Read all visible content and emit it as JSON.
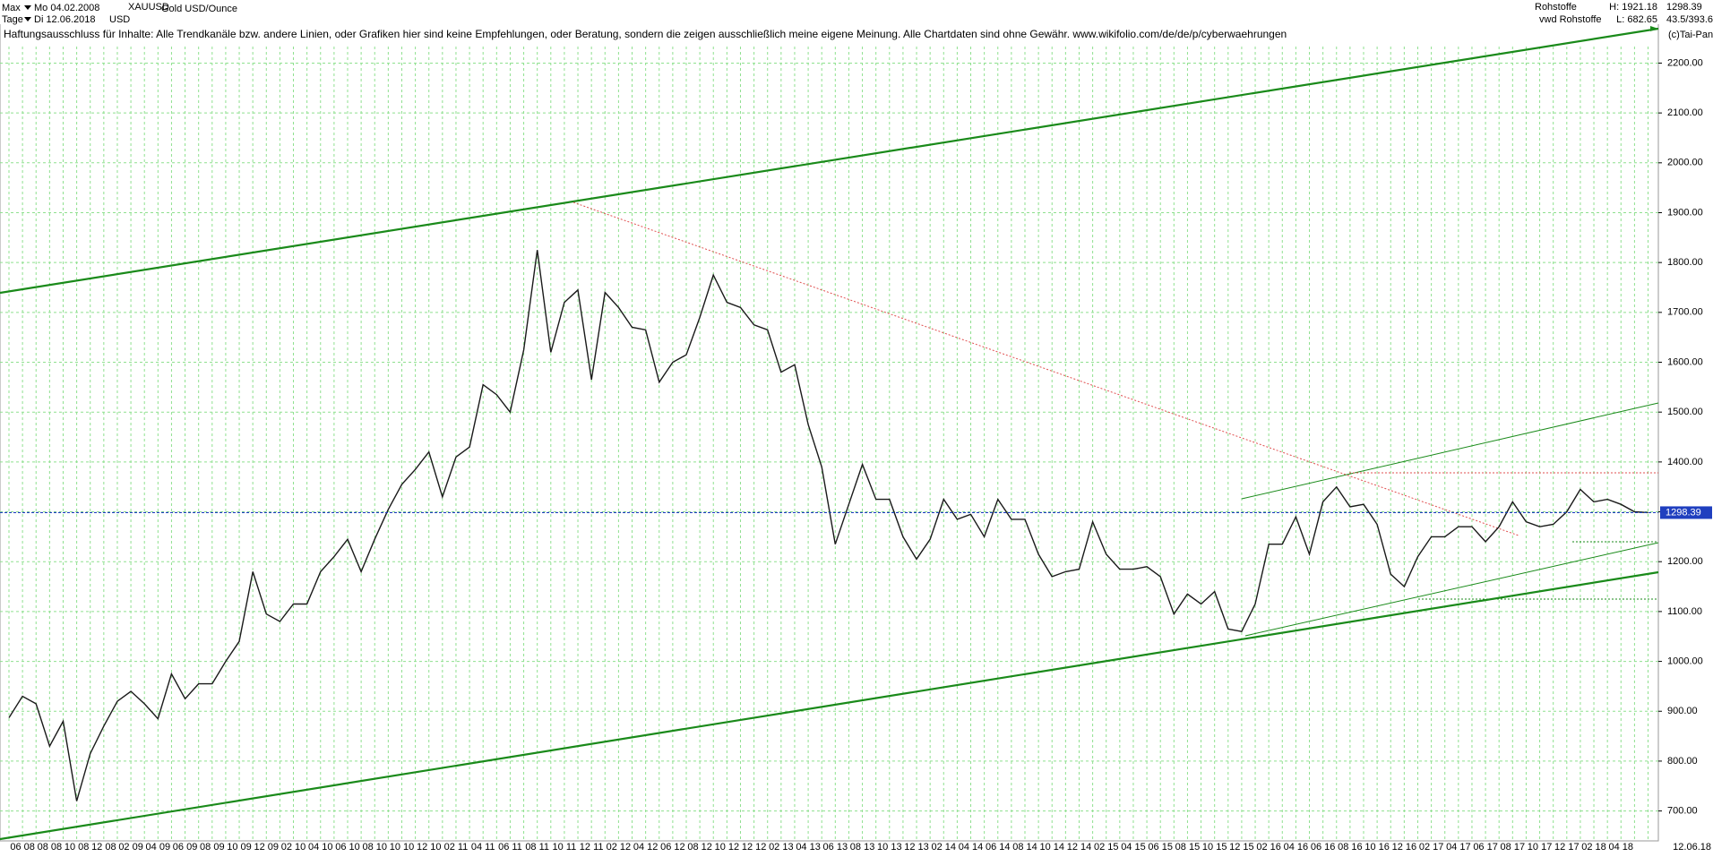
{
  "header": {
    "range": "Max",
    "date_from": "Mo 04.02.2008",
    "symbol": "XAUUSD",
    "name": "Gold USD/Ounce",
    "period": "Tage",
    "date_to": "Di 12.06.2018",
    "currency": "USD",
    "source": "Rohstoffe",
    "high": "H: 1921.18",
    "last": "1298.39",
    "source2": "vwd Rohstoffe",
    "low": "L: 682.65",
    "ratio": "43.5/393.6",
    "copyright": "(c)Tai-Pan",
    "disclaimer": "Haftungsausschluss für Inhalte: Alle Trendkanäle bzw. andere Linien, oder Grafiken hier sind keine Empfehlungen, oder Beratung, sondern die zeigen ausschließlich meine eigene Meinung. Alle Chartdaten sind ohne Gewähr.  www.wikifolio.com/de/de/p/cyberwaehrungen",
    "end_date": "12.06.18"
  },
  "chart_data": {
    "type": "line",
    "color": "#1a1a1a",
    "grid": true,
    "last_price": 1298.39,
    "categories": [
      null,
      "06 08",
      null,
      "08 08",
      null,
      "10 08",
      null,
      "12 08",
      null,
      "02 09",
      null,
      "04 09",
      null,
      "06 09",
      null,
      "08 09",
      null,
      "10 09",
      null,
      "12 09",
      null,
      "02 10",
      null,
      "04 10",
      null,
      "06 10",
      null,
      "08 10",
      null,
      "10 10",
      null,
      "12 10",
      null,
      "02 11",
      null,
      "04 11",
      null,
      "06 11",
      null,
      "08 11",
      null,
      "10 11",
      null,
      "12 11",
      null,
      "02 12",
      null,
      "04 12",
      null,
      "06 12",
      null,
      "08 12",
      null,
      "10 12",
      null,
      "12 12",
      null,
      "02 13",
      null,
      "04 13",
      null,
      "06 13",
      null,
      "08 13",
      null,
      "10 13",
      null,
      "12 13",
      null,
      "02 14",
      null,
      "04 14",
      null,
      "06 14",
      null,
      "08 14",
      null,
      "10 14",
      null,
      "12 14",
      null,
      "02 15",
      null,
      "04 15",
      null,
      "06 15",
      null,
      "08 15",
      null,
      "10 15",
      null,
      "12 15",
      null,
      "02 16",
      null,
      "04 16",
      null,
      "06 16",
      null,
      "08 16",
      null,
      "10 16",
      null,
      "12 16",
      null,
      "02 17",
      null,
      "04 17",
      null,
      "06 17",
      null,
      "08 17",
      null,
      "10 17",
      null,
      "12 17",
      null,
      "02 18",
      null,
      "04 18",
      null,
      null
    ],
    "values": [
      887,
      930,
      915,
      830,
      880,
      720,
      815,
      870,
      920,
      940,
      915,
      885,
      975,
      925,
      955,
      955,
      1000,
      1040,
      1180,
      1095,
      1080,
      1115,
      1115,
      1180,
      1210,
      1245,
      1180,
      1245,
      1305,
      1355,
      1385,
      1420,
      1330,
      1410,
      1430,
      1555,
      1535,
      1500,
      1625,
      1825,
      1620,
      1720,
      1745,
      1565,
      1740,
      1710,
      1670,
      1665,
      1560,
      1600,
      1615,
      1690,
      1775,
      1720,
      1710,
      1675,
      1665,
      1580,
      1595,
      1475,
      1390,
      1235,
      1315,
      1395,
      1325,
      1325,
      1250,
      1205,
      1245,
      1325,
      1285,
      1295,
      1250,
      1325,
      1285,
      1285,
      1215,
      1170,
      1180,
      1185,
      1280,
      1215,
      1185,
      1185,
      1190,
      1170,
      1095,
      1135,
      1115,
      1140,
      1065,
      1060,
      1115,
      1235,
      1235,
      1290,
      1215,
      1320,
      1350,
      1310,
      1315,
      1275,
      1175,
      1150,
      1210,
      1250,
      1250,
      1270,
      1270,
      1240,
      1270,
      1320,
      1280,
      1270,
      1275,
      1300,
      1345,
      1320,
      1325,
      1315,
      1300,
      1298.39
    ],
    "ylim": [
      640,
      2305
    ],
    "yticks": [
      {
        "value": 700,
        "label": "700.00"
      },
      {
        "value": 800,
        "label": "800.00"
      },
      {
        "value": 900,
        "label": "900.00"
      },
      {
        "value": 1000,
        "label": "1000.00"
      },
      {
        "value": 1100,
        "label": "1100.00"
      },
      {
        "value": 1200,
        "label": "1200.00"
      },
      {
        "value": 1300,
        "label": "1300.00"
      },
      {
        "value": 1400,
        "label": "1400.00"
      },
      {
        "value": 1500,
        "label": "1500.00"
      },
      {
        "value": 1600,
        "label": "1600.00"
      },
      {
        "value": 1700,
        "label": "1700.00"
      },
      {
        "value": 1800,
        "label": "1800.00"
      },
      {
        "value": 1900,
        "label": "1900.00"
      },
      {
        "value": 2000,
        "label": "2000.00"
      },
      {
        "value": 2100,
        "label": "2100.00"
      },
      {
        "value": 2200,
        "label": "2200.00"
      }
    ]
  }
}
